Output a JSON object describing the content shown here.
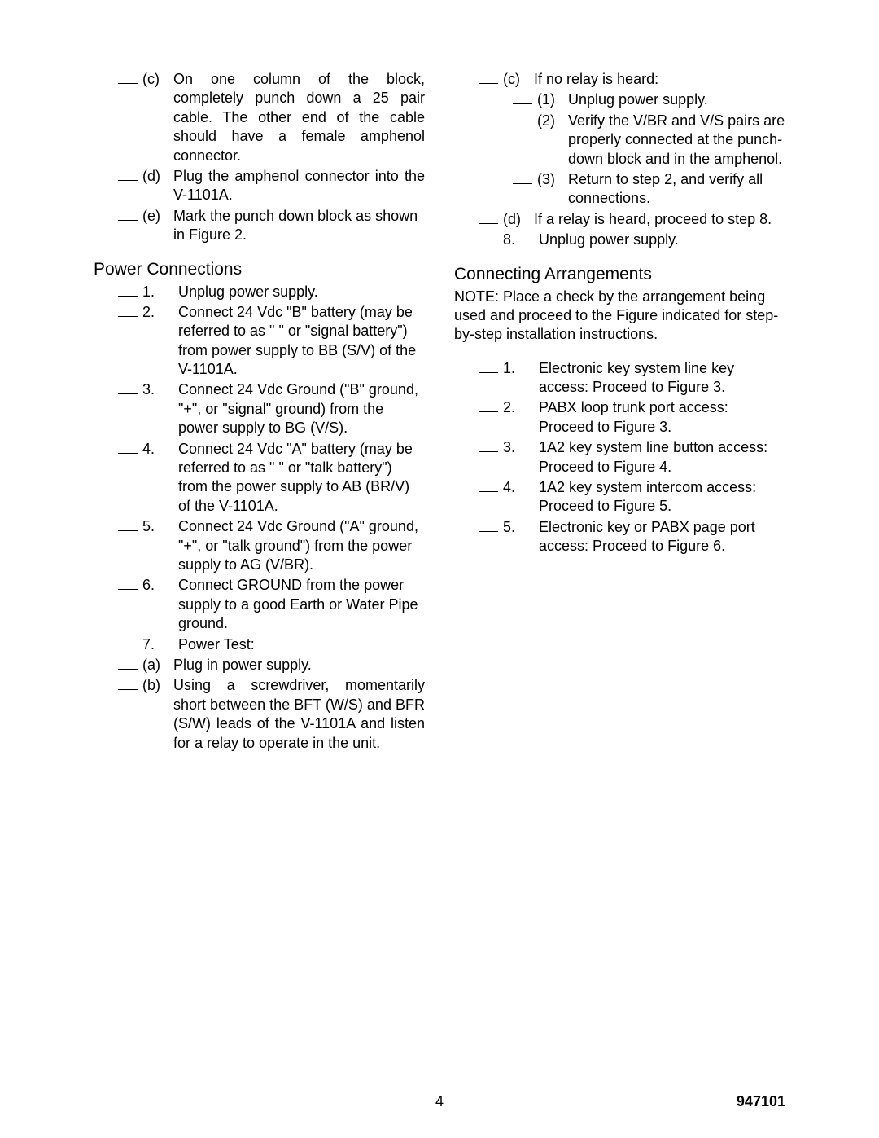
{
  "left": {
    "pre_items": [
      {
        "blank": true,
        "marker": "(c)",
        "text": "On one column of the block, completely punch down a 25 pair cable.  The other end of the cable should have a female amphenol connector."
      },
      {
        "blank": true,
        "marker": "(d)",
        "text": "Plug the amphenol connector into the V-1101A."
      },
      {
        "blank": true,
        "marker": "(e)",
        "text": "Mark the punch down block as shown in Figure 2."
      }
    ],
    "section1_title": "Power Connections",
    "section1_items": [
      {
        "blank": true,
        "marker": "1.",
        "text": "Unplug power supply."
      },
      {
        "blank": true,
        "marker": "2.",
        "text": "Connect 24 Vdc \"B\" battery (may be referred to as \" \" or \"signal battery\") from power supply to BB (S/V) of the V-1101A."
      },
      {
        "blank": true,
        "marker": "3.",
        "text": "Connect 24 Vdc Ground (\"B\" ground, \"+\", or \"signal\" ground) from the power supply to BG (V/S)."
      },
      {
        "blank": true,
        "marker": "4.",
        "text": "Connect 24 Vdc \"A\" battery (may be referred to as \" \" or \"talk battery\") from the power supply to AB (BR/V) of the V-1101A."
      },
      {
        "blank": true,
        "marker": "5.",
        "text": "Connect 24 Vdc Ground (\"A\" ground, \"+\", or \"talk ground\") from the power supply to AG (V/BR)."
      },
      {
        "blank": true,
        "marker": "6.",
        "text": "Connect GROUND from the power supply to a good Earth or Water Pipe ground."
      },
      {
        "blank": false,
        "marker": "7.",
        "text": "Power Test:"
      },
      {
        "blank": true,
        "marker": "(a)",
        "text": "Plug in power supply."
      },
      {
        "blank": true,
        "marker": "(b)",
        "text": "Using a screwdriver, momentarily short between the BFT (W/S) and BFR (S/W) leads of the V-1101A and listen for a relay to operate in the unit."
      }
    ]
  },
  "right": {
    "pre_items": [
      {
        "blank": true,
        "marker": "(c)",
        "text": "If no relay is heard:",
        "indent": 0
      },
      {
        "blank": true,
        "marker": "(1)",
        "text": "Unplug power supply.",
        "indent": 1
      },
      {
        "blank": true,
        "marker": "(2)",
        "text": "Verify the V/BR and V/S pairs are properly connected at the punch-down block and in the amphenol.",
        "indent": 1
      },
      {
        "blank": true,
        "marker": "(3)",
        "text": "Return to step 2, and verify all connections.",
        "indent": 1
      },
      {
        "blank": true,
        "marker": "(d)",
        "text": "If a relay is heard, proceed to step 8.",
        "indent": 0
      },
      {
        "blank": true,
        "marker": "8.",
        "text": "Unplug power supply.",
        "indent": 0
      }
    ],
    "section1_title": "Connecting Arrangements",
    "note": "NOTE:  Place a check by the arrangement being used and proceed to the Figure indicated for step-by-step installation instructions.",
    "section1_items": [
      {
        "blank": true,
        "marker": "1.",
        "text": "Electronic key system line key access: Proceed to Figure 3."
      },
      {
        "blank": true,
        "marker": "2.",
        "text": "PABX loop trunk port access: Proceed to Figure 3."
      },
      {
        "blank": true,
        "marker": "3.",
        "text": "1A2 key system line button access: Proceed to Figure 4."
      },
      {
        "blank": true,
        "marker": "4.",
        "text": "1A2 key system intercom access: Proceed to Figure 5."
      },
      {
        "blank": true,
        "marker": "5.",
        "text": "Electronic key or PABX page port access: Proceed to Figure 6."
      }
    ]
  },
  "footer": {
    "page_num": "4",
    "doc_code": "947101"
  }
}
